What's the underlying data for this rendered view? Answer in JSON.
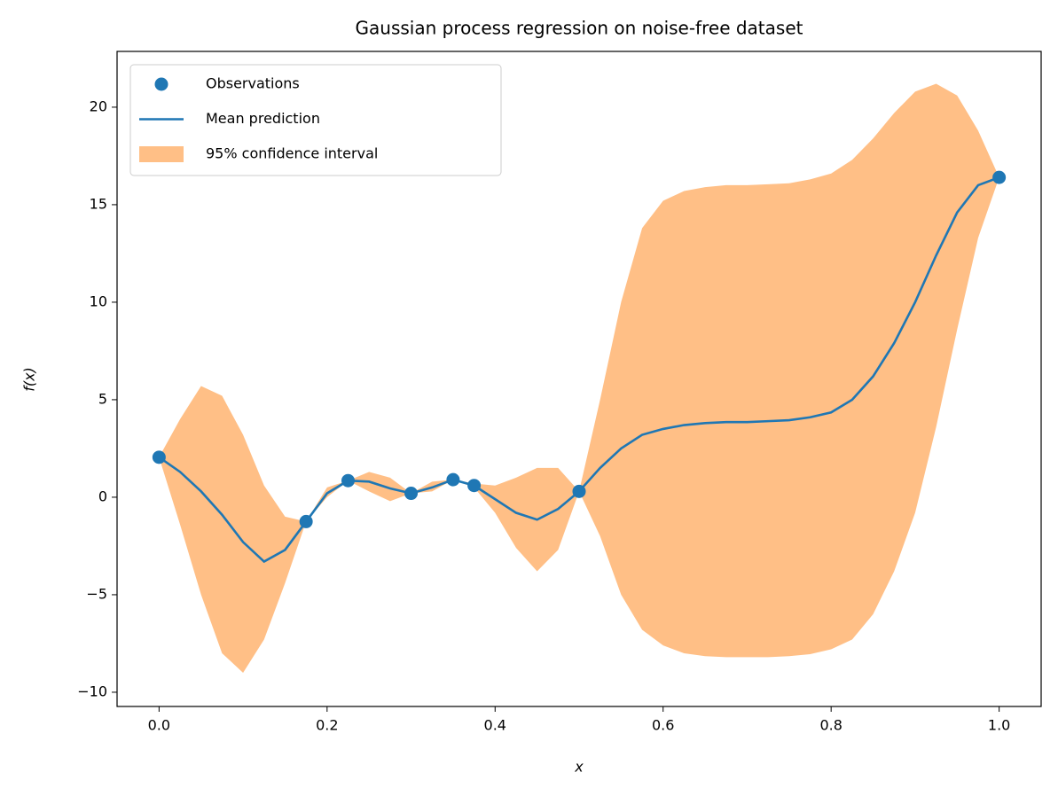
{
  "chart_data": {
    "type": "line",
    "title": "Gaussian process regression on noise-free dataset",
    "xlabel": "x",
    "ylabel": "f(x)",
    "xlim": [
      -0.05,
      1.05
    ],
    "ylim": [
      -10.73,
      22.86
    ],
    "xticks": [
      {
        "value": 0,
        "label": "0.0"
      },
      {
        "value": 0.2,
        "label": "0.2"
      },
      {
        "value": 0.4,
        "label": "0.4"
      },
      {
        "value": 0.6,
        "label": "0.6"
      },
      {
        "value": 0.8,
        "label": "0.8"
      },
      {
        "value": 1,
        "label": "1.0"
      }
    ],
    "yticks": [
      {
        "value": -10,
        "label": "−10"
      },
      {
        "value": -5,
        "label": "−5"
      },
      0,
      5,
      10,
      15,
      20
    ],
    "legend": "upper left",
    "x": [
      0,
      0.025,
      0.05,
      0.075,
      0.1,
      0.125,
      0.15,
      0.175,
      0.2,
      0.225,
      0.25,
      0.275,
      0.3,
      0.325,
      0.35,
      0.375,
      0.4,
      0.425,
      0.45,
      0.475,
      0.5,
      0.525,
      0.55,
      0.575,
      0.6,
      0.625,
      0.65,
      0.675,
      0.7,
      0.725,
      0.75,
      0.775,
      0.8,
      0.825,
      0.85,
      0.875,
      0.9,
      0.925,
      0.95,
      0.975,
      1.0
    ],
    "series": [
      {
        "name": "Observations",
        "kind": "scatter",
        "color": "#1f77b4",
        "x": [
          0,
          0.175,
          0.225,
          0.3,
          0.35,
          0.375,
          0.5,
          1.0
        ],
        "values": [
          2.05,
          -1.25,
          0.85,
          0.2,
          0.9,
          0.6,
          0.3,
          16.4
        ]
      },
      {
        "name": "Mean prediction",
        "kind": "line",
        "color": "#1f77b4",
        "values": [
          2.05,
          1.3,
          0.3,
          -0.9,
          -2.3,
          -3.3,
          -2.7,
          -1.25,
          0.2,
          0.85,
          0.8,
          0.45,
          0.2,
          0.5,
          0.9,
          0.6,
          -0.1,
          -0.8,
          -1.15,
          -0.6,
          0.3,
          1.5,
          2.5,
          3.2,
          3.5,
          3.7,
          3.8,
          3.85,
          3.85,
          3.9,
          3.95,
          4.1,
          4.35,
          5.0,
          6.2,
          7.9,
          10.0,
          12.4,
          14.6,
          16.0,
          16.4
        ]
      },
      {
        "name": "95% confidence interval",
        "kind": "band",
        "color": "#ffbf86",
        "upper": [
          2.05,
          4.0,
          5.7,
          5.2,
          3.2,
          0.6,
          -1.0,
          -1.25,
          0.5,
          0.85,
          1.3,
          1.0,
          0.2,
          0.8,
          0.9,
          0.7,
          0.6,
          1.0,
          1.5,
          1.5,
          0.3,
          5.0,
          10.0,
          13.8,
          15.2,
          15.7,
          15.9,
          16.0,
          16.0,
          16.05,
          16.1,
          16.3,
          16.6,
          17.3,
          18.4,
          19.7,
          20.8,
          21.2,
          20.6,
          18.8,
          16.4
        ],
        "lower": [
          2.05,
          -1.4,
          -5.0,
          -8.0,
          -9.0,
          -7.3,
          -4.4,
          -1.25,
          0.0,
          0.85,
          0.3,
          -0.2,
          0.2,
          0.3,
          0.9,
          0.5,
          -0.8,
          -2.6,
          -3.8,
          -2.7,
          0.3,
          -2.0,
          -5.0,
          -6.8,
          -7.6,
          -8.0,
          -8.15,
          -8.2,
          -8.2,
          -8.2,
          -8.15,
          -8.05,
          -7.8,
          -7.3,
          -6.0,
          -3.8,
          -0.8,
          3.6,
          8.6,
          13.3,
          16.4
        ]
      }
    ]
  }
}
